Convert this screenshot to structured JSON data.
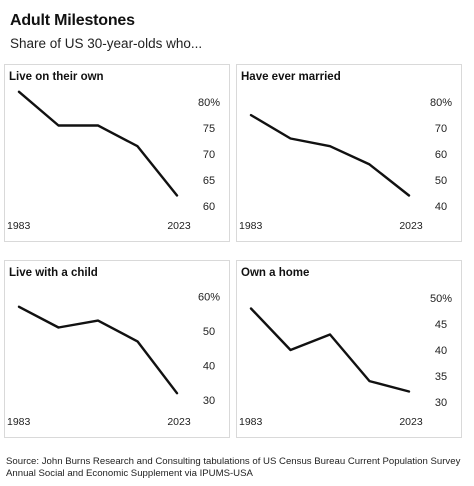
{
  "header": {
    "title": "Adult Milestones",
    "subtitle": "Share of US 30-year-olds who..."
  },
  "source": "Source: John Burns Research and Consulting tabulations of US Census Bureau Current Population Survey Annual Social and Economic Supplement via IPUMS-USA",
  "colors": {
    "line": "#111111",
    "border": "#d9d9d9"
  },
  "chart_data": [
    {
      "type": "line",
      "title": "Live on their own",
      "x": [
        1983,
        1993,
        2003,
        2013,
        2023
      ],
      "x_tick_labels": [
        "1983",
        "2023"
      ],
      "values": [
        82,
        75.5,
        75.5,
        71.5,
        62
      ],
      "ylim": [
        59,
        81
      ],
      "yticks": [
        80,
        75,
        70,
        65,
        60
      ],
      "ytick_labels": [
        "80%",
        "75",
        "70",
        "65",
        "60"
      ],
      "grid": false
    },
    {
      "type": "line",
      "title": "Have ever married",
      "x": [
        1983,
        1993,
        2003,
        2013,
        2023
      ],
      "x_tick_labels": [
        "1983",
        "2023"
      ],
      "values": [
        75,
        66,
        63,
        56,
        44
      ],
      "ylim": [
        38,
        82
      ],
      "yticks": [
        80,
        70,
        60,
        50,
        40
      ],
      "ytick_labels": [
        "80%",
        "70",
        "60",
        "50",
        "40"
      ],
      "grid": false
    },
    {
      "type": "line",
      "title": "Live with a child",
      "x": [
        1983,
        1993,
        2003,
        2013,
        2023
      ],
      "x_tick_labels": [
        "1983",
        "2023"
      ],
      "values": [
        57,
        51,
        53,
        47,
        32
      ],
      "ylim": [
        28,
        61
      ],
      "yticks": [
        60,
        50,
        40,
        30
      ],
      "ytick_labels": [
        "60%",
        "50",
        "40",
        "30"
      ],
      "grid": false
    },
    {
      "type": "line",
      "title": "Own a home",
      "x": [
        1983,
        1993,
        2003,
        2013,
        2023
      ],
      "x_tick_labels": [
        "1983",
        "2023"
      ],
      "values": [
        48,
        40,
        43,
        34,
        32
      ],
      "ylim": [
        29,
        51
      ],
      "yticks": [
        50,
        45,
        40,
        35,
        30
      ],
      "ytick_labels": [
        "50%",
        "45",
        "40",
        "35",
        "30"
      ],
      "grid": false
    }
  ]
}
